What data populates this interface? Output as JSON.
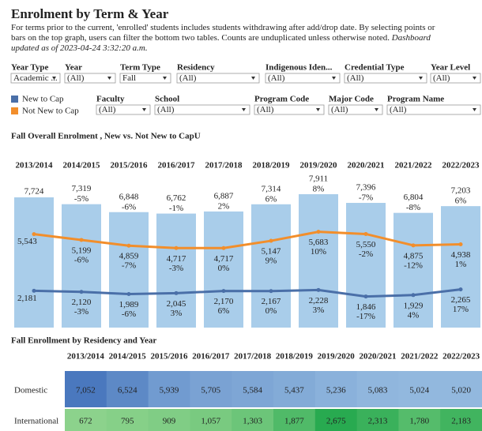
{
  "header": {
    "title": "Enrolment by Term & Year",
    "description": "For terms prior to the current, 'enrolled' students includes students withdrawing after add/drop date.  By selecting points or bars on the top graph, users can filter the bottom two tables.  Counts are unduplicated unless otherwise noted.",
    "updated": "Dashboard updated as of 2023-04-24 3:32:20 a.m."
  },
  "filters": [
    {
      "label": "Year Type",
      "value": "Academic ..."
    },
    {
      "label": "Year",
      "value": "(All)"
    },
    {
      "label": "Term Type",
      "value": "Fall"
    },
    {
      "label": "Residency",
      "value": "(All)"
    },
    {
      "label": "Indigenous Iden...",
      "value": "(All)"
    },
    {
      "label": "Credential Type",
      "value": "(All)"
    },
    {
      "label": "Year Level",
      "value": "(All)"
    },
    {
      "label": "Faculty",
      "value": "(All)"
    },
    {
      "label": "School",
      "value": "(All)"
    },
    {
      "label": "Program Code",
      "value": "(All)"
    },
    {
      "label": "Major Code",
      "value": "(All)"
    },
    {
      "label": "Program Name",
      "value": "(All)"
    }
  ],
  "chart_data": {
    "type": "bar",
    "title": "Fall Overall Enrolment , New vs. Not New to CapU",
    "categories": [
      "2013/2014",
      "2014/2015",
      "2015/2016",
      "2016/2017",
      "2017/2018",
      "2018/2019",
      "2019/2020",
      "2020/2021",
      "2021/2022",
      "2022/2023"
    ],
    "values": [
      7724,
      7319,
      6848,
      6762,
      6887,
      7314,
      7911,
      7396,
      6804,
      7203
    ],
    "value_labels": [
      "7,724",
      "7,319",
      "6,848",
      "6,762",
      "6,887",
      "7,314",
      "7,911",
      "7,396",
      "6,804",
      "7,203"
    ],
    "change_labels": [
      null,
      "-5%",
      "-6%",
      "-1%",
      "2%",
      "6%",
      "8%",
      "-7%",
      "-8%",
      "6%"
    ],
    "color": "#a9cdea",
    "series": [
      {
        "name": "New to Cap",
        "color": "#4a6fa8",
        "values": [
          2181,
          2120,
          1989,
          2045,
          2170,
          2167,
          2228,
          1846,
          1929,
          2265
        ],
        "value_labels": [
          "2,181",
          "2,120",
          "1,989",
          "2,045",
          "2,170",
          "2,167",
          "2,228",
          "1,846",
          "1,929",
          "2,265"
        ],
        "change_labels": [
          null,
          "-3%",
          "-6%",
          "3%",
          "6%",
          "0%",
          "3%",
          "-17%",
          "4%",
          "17%"
        ]
      },
      {
        "name": "Not New to Cap",
        "color": "#f28e2b",
        "values": [
          5543,
          5199,
          4859,
          4717,
          4717,
          5147,
          5683,
          5550,
          4875,
          4938
        ],
        "value_labels": [
          "5,543",
          "5,199",
          "4,859",
          "4,717",
          "4,717",
          "5,147",
          "5,683",
          "5,550",
          "4,875",
          "4,938"
        ],
        "change_labels": [
          null,
          "-6%",
          "-7%",
          "-3%",
          "0%",
          "9%",
          "10%",
          "-2%",
          "-12%",
          "1%"
        ]
      }
    ]
  },
  "table": {
    "title": "Fall Enrollment by Residency and Year",
    "columns": [
      "2013/2014",
      "2014/2015",
      "2015/2016",
      "2016/2017",
      "2017/2018",
      "2018/2019",
      "2019/2020",
      "2020/2021",
      "2021/2022",
      "2022/2023"
    ],
    "rows": [
      {
        "name": "Domestic",
        "values": [
          7052,
          6524,
          5939,
          5705,
          5584,
          5437,
          5236,
          5083,
          5024,
          5020
        ],
        "value_labels": [
          "7,052",
          "6,524",
          "5,939",
          "5,705",
          "5,584",
          "5,437",
          "5,236",
          "5,083",
          "5,024",
          "5,020"
        ]
      },
      {
        "name": "International",
        "values": [
          672,
          795,
          909,
          1057,
          1303,
          1877,
          2675,
          2313,
          1780,
          2183
        ],
        "value_labels": [
          "672",
          "795",
          "909",
          "1,057",
          "1,303",
          "1,877",
          "2,675",
          "2,313",
          "1,780",
          "2,183"
        ]
      }
    ]
  }
}
